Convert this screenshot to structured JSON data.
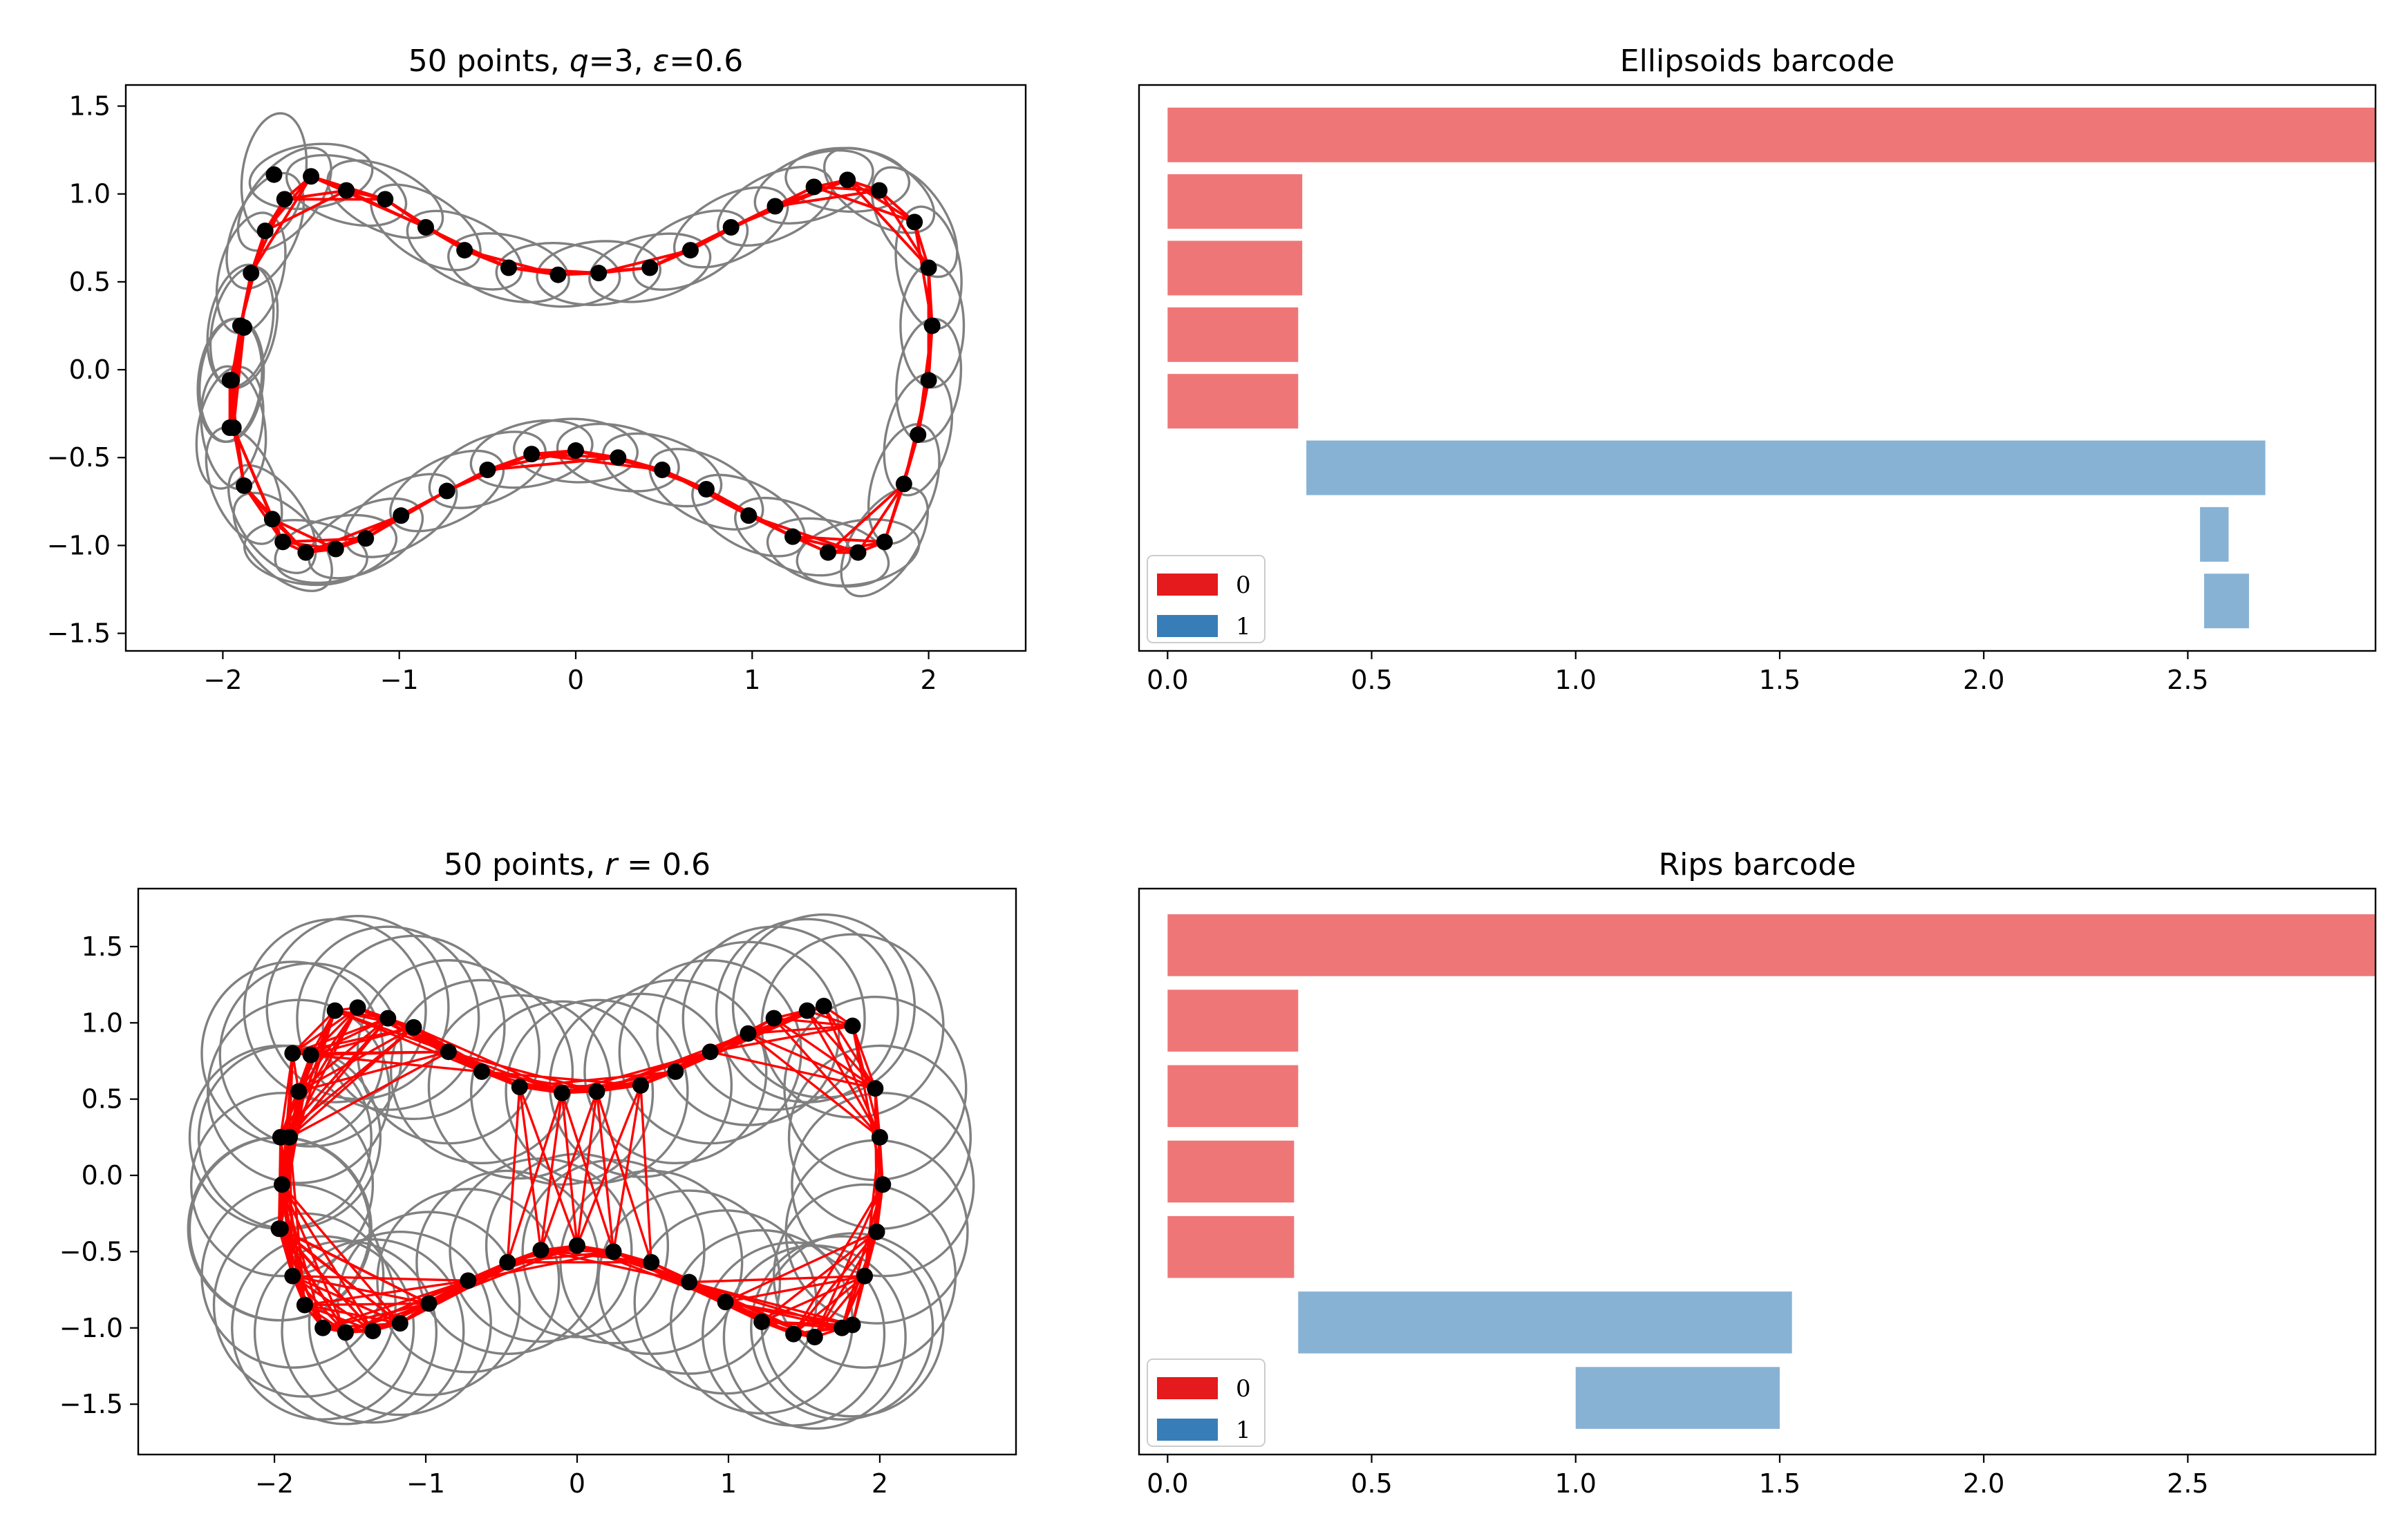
{
  "colors": {
    "edge": "#ff0000",
    "point": "#000000",
    "ellipse": "#808080",
    "bar0": "#e41a1c",
    "bar1": "#377eb8",
    "bar_alpha": 0.6
  },
  "chart_data": [
    {
      "type": "scatter",
      "title": "50 points, q=3, ε=0.6",
      "title_parts": [
        "50 points, ",
        "q",
        "=3, ",
        "ε",
        "=0.6"
      ],
      "xlabel": "",
      "ylabel": "",
      "xlim": [
        -2.55,
        2.55
      ],
      "ylim": [
        -1.6,
        1.62
      ],
      "xticks": [
        -2,
        -1,
        0,
        1,
        2
      ],
      "xtick_labels": [
        "−2",
        "−1",
        "0",
        "1",
        "2"
      ],
      "yticks": [
        -1.5,
        -1.0,
        -0.5,
        0.0,
        0.5,
        1.0,
        1.5
      ],
      "ytick_labels": [
        "−1.5",
        "−1.0",
        "−0.5",
        "0.0",
        "0.5",
        "1.0",
        "1.5"
      ],
      "grid": false,
      "points": {
        "x": [
          -1.96,
          -1.95,
          -1.9,
          -1.84,
          -1.76,
          -1.65,
          -1.5,
          -1.3,
          -1.08,
          -0.85,
          -0.63,
          -0.38,
          -0.1,
          0.13,
          0.42,
          0.65,
          0.88,
          1.13,
          1.35,
          1.54,
          1.72,
          1.92,
          2.0,
          2.02,
          2.0,
          1.94,
          1.86,
          1.75,
          1.6,
          1.43,
          1.23,
          0.98,
          0.74,
          0.49,
          0.24,
          0.0,
          -0.25,
          -0.5,
          -0.73,
          -0.99,
          -1.19,
          -1.36,
          -1.53,
          -1.66,
          -1.72,
          -1.88,
          -1.94,
          -1.96,
          -1.88,
          -1.71
        ],
        "y": [
          -0.33,
          -0.06,
          0.25,
          0.55,
          0.79,
          0.97,
          1.1,
          1.02,
          0.97,
          0.81,
          0.68,
          0.58,
          0.54,
          0.55,
          0.58,
          0.68,
          0.81,
          0.93,
          1.04,
          1.08,
          1.02,
          0.84,
          0.58,
          0.25,
          -0.06,
          -0.37,
          -0.65,
          -0.98,
          -1.04,
          -1.04,
          -0.95,
          -0.83,
          -0.68,
          -0.57,
          -0.5,
          -0.46,
          -0.48,
          -0.57,
          -0.69,
          -0.83,
          -0.96,
          -1.02,
          -1.04,
          -0.98,
          -0.85,
          -0.66,
          -0.33,
          -0.06,
          0.24,
          1.11
        ]
      },
      "ellipses": {
        "semi_major": 0.35,
        "semi_minor": 0.18
      },
      "edges": "neighbors"
    },
    {
      "type": "bar",
      "orientation": "horizontal",
      "title": "Ellipsoids barcode",
      "xlabel": "",
      "ylabel": "",
      "xlim": [
        -0.07,
        2.96
      ],
      "xticks": [
        0.0,
        0.5,
        1.0,
        1.5,
        2.0,
        2.5
      ],
      "xtick_labels": [
        "0.0",
        "0.5",
        "1.0",
        "1.5",
        "2.0",
        "2.5"
      ],
      "grid": false,
      "legend": {
        "position": "lower-left",
        "entries": [
          "0",
          "1"
        ]
      },
      "bars": [
        {
          "dim": 0,
          "start": 0.0,
          "end": 2.96
        },
        {
          "dim": 0,
          "start": 0.0,
          "end": 0.33
        },
        {
          "dim": 0,
          "start": 0.0,
          "end": 0.33
        },
        {
          "dim": 0,
          "start": 0.0,
          "end": 0.32
        },
        {
          "dim": 0,
          "start": 0.0,
          "end": 0.32
        },
        {
          "dim": 1,
          "start": 0.34,
          "end": 2.69
        },
        {
          "dim": 1,
          "start": 2.53,
          "end": 2.6
        },
        {
          "dim": 1,
          "start": 2.54,
          "end": 2.65
        }
      ]
    },
    {
      "type": "scatter",
      "title": "50 points, r=0.6",
      "title_parts": [
        "50 points, ",
        "r",
        " = 0.6"
      ],
      "xlabel": "",
      "ylabel": "",
      "xlim": [
        -2.9,
        2.9
      ],
      "ylim": [
        -1.83,
        1.88
      ],
      "xticks": [
        -2,
        -1,
        0,
        1,
        2
      ],
      "xtick_labels": [
        "−2",
        "−1",
        "0",
        "1",
        "2"
      ],
      "yticks": [
        -1.5,
        -1.0,
        -0.5,
        0.0,
        0.5,
        1.0,
        1.5
      ],
      "ytick_labels": [
        "−1.5",
        "−1.0",
        "−0.5",
        "0.0",
        "0.5",
        "1.0",
        "1.5"
      ],
      "grid": false,
      "points": {
        "x": [
          -1.96,
          -1.95,
          -1.9,
          -1.84,
          -1.76,
          -1.6,
          -1.45,
          -1.25,
          -1.08,
          -0.85,
          -0.63,
          -0.38,
          -0.1,
          0.13,
          0.42,
          0.65,
          0.88,
          1.13,
          1.3,
          1.52,
          1.63,
          1.82,
          1.97,
          2.0,
          2.02,
          1.98,
          1.9,
          1.82,
          1.75,
          1.57,
          1.43,
          1.22,
          0.98,
          0.74,
          0.49,
          0.24,
          0.0,
          -0.24,
          -0.46,
          -0.72,
          -0.98,
          -1.17,
          -1.35,
          -1.53,
          -1.68,
          -1.8,
          -1.88,
          -1.97,
          -1.96,
          -1.88
        ],
        "y": [
          -0.35,
          -0.06,
          0.25,
          0.55,
          0.79,
          1.08,
          1.1,
          1.03,
          0.97,
          0.81,
          0.68,
          0.58,
          0.54,
          0.55,
          0.59,
          0.68,
          0.81,
          0.93,
          1.03,
          1.08,
          1.11,
          0.98,
          0.57,
          0.25,
          -0.06,
          -0.37,
          -0.66,
          -0.98,
          -1.0,
          -1.06,
          -1.04,
          -0.96,
          -0.83,
          -0.7,
          -0.57,
          -0.5,
          -0.46,
          -0.49,
          -0.57,
          -0.69,
          -0.84,
          -0.97,
          -1.02,
          -1.03,
          -1.0,
          -0.85,
          -0.66,
          -0.35,
          0.25,
          0.8
        ]
      },
      "circles": {
        "radius": 0.6
      },
      "edges": "distance<=1.2"
    },
    {
      "type": "bar",
      "orientation": "horizontal",
      "title": "Rips barcode",
      "xlabel": "",
      "ylabel": "",
      "xlim": [
        -0.07,
        2.96
      ],
      "xticks": [
        0.0,
        0.5,
        1.0,
        1.5,
        2.0,
        2.5
      ],
      "xtick_labels": [
        "0.0",
        "0.5",
        "1.0",
        "1.5",
        "2.0",
        "2.5"
      ],
      "grid": false,
      "legend": {
        "position": "lower-left",
        "entries": [
          "0",
          "1"
        ]
      },
      "bars": [
        {
          "dim": 0,
          "start": 0.0,
          "end": 2.96
        },
        {
          "dim": 0,
          "start": 0.0,
          "end": 0.32
        },
        {
          "dim": 0,
          "start": 0.0,
          "end": 0.32
        },
        {
          "dim": 0,
          "start": 0.0,
          "end": 0.31
        },
        {
          "dim": 0,
          "start": 0.0,
          "end": 0.31
        },
        {
          "dim": 1,
          "start": 0.32,
          "end": 1.53
        },
        {
          "dim": 1,
          "start": 1.0,
          "end": 1.5
        }
      ]
    }
  ]
}
